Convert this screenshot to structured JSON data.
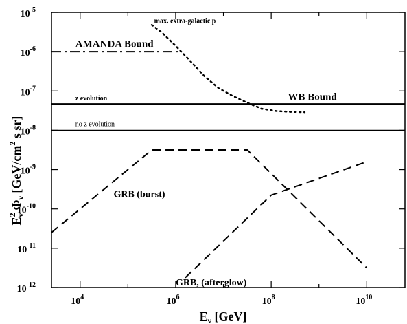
{
  "chart_data": {
    "type": "line",
    "title": "",
    "xlabel": {
      "base": "E",
      "sub": "ν",
      "unit": "[GeV]"
    },
    "ylabel": {
      "base": "E",
      "sup": "2",
      "sub_after_sup": "ν",
      "mid": "Φ",
      "mid_sub": "ν",
      "unit": "[GeV/cm",
      "unit_sup": "2",
      "unit_end": " s sr]"
    },
    "xscale": "log",
    "yscale": "log",
    "xlim_log10": [
      3.4,
      10.8
    ],
    "ylim_log10": [
      -12,
      -5
    ],
    "xticks": [
      {
        "value": 10000.0,
        "base": "10",
        "exp": "4"
      },
      {
        "value": 1000000.0,
        "base": "10",
        "exp": "6"
      },
      {
        "value": 100000000.0,
        "base": "10",
        "exp": "8"
      },
      {
        "value": 10000000000.0,
        "base": "10",
        "exp": "10"
      }
    ],
    "yticks": [
      {
        "value": 1e-05,
        "base": "10",
        "exp": "-5"
      },
      {
        "value": 1e-06,
        "base": "10",
        "exp": "-6"
      },
      {
        "value": 1e-07,
        "base": "10",
        "exp": "-7"
      },
      {
        "value": 1e-08,
        "base": "10",
        "exp": "-8"
      },
      {
        "value": 1e-09,
        "base": "10",
        "exp": "-9"
      },
      {
        "value": 1e-10,
        "base": "10",
        "exp": "-10"
      },
      {
        "value": 1e-11,
        "base": "10",
        "exp": "-11"
      },
      {
        "value": 1e-12,
        "base": "10",
        "exp": "-12"
      }
    ],
    "series": [
      {
        "key": "amanda",
        "label": "AMANDA Bound",
        "style": "dashdot",
        "width": 2,
        "x": [
          3.4,
          6.05
        ],
        "y": [
          -6,
          -6
        ]
      },
      {
        "key": "maxeg",
        "label": "max. extra-galactic p",
        "style": "dotted",
        "width": 2.5,
        "x": [
          5.5,
          5.7,
          6.0,
          6.3,
          6.6,
          6.9,
          7.2,
          7.5,
          7.8,
          8.1,
          8.4,
          8.7
        ],
        "y": [
          -5.32,
          -5.5,
          -5.85,
          -6.23,
          -6.62,
          -6.93,
          -7.13,
          -7.3,
          -7.45,
          -7.51,
          -7.53,
          -7.54
        ]
      },
      {
        "key": "wb_z",
        "label": "z evolution",
        "style": "solid",
        "width": 2,
        "x": [
          3.4,
          10.8
        ],
        "y": [
          -7.33,
          -7.33
        ]
      },
      {
        "key": "wb_noz",
        "label": "no z evolution",
        "style": "solid",
        "width": 1.3,
        "x": [
          3.4,
          10.8
        ],
        "y": [
          -8,
          -8
        ]
      },
      {
        "key": "grb_burst",
        "label": "GRB (burst)",
        "style": "dashed",
        "width": 2,
        "x": [
          3.4,
          5.5,
          7.5,
          10.0
        ],
        "y": [
          -10.6,
          -8.5,
          -8.5,
          -11.5
        ]
      },
      {
        "key": "grb_afterglow",
        "label": "GRB (afterglow)",
        "style": "dashed",
        "width": 2,
        "x": [
          6.2,
          8.0,
          10.0
        ],
        "y": [
          -11.75,
          -9.65,
          -8.8
        ]
      }
    ],
    "annotations": [
      {
        "text": "max. extra-galactic p",
        "x_log": 5.55,
        "y_log": -5.27,
        "size": 10,
        "weight": "bold"
      },
      {
        "text": "AMANDA Bound",
        "x_log": 3.9,
        "y_log": -5.88,
        "size": 15,
        "weight": "bold"
      },
      {
        "text": "z evolution",
        "x_log": 3.9,
        "y_log": -7.24,
        "size": 10,
        "weight": "bold"
      },
      {
        "text": "WB Bound",
        "x_log": 8.35,
        "y_log": -7.23,
        "size": 15,
        "weight": "bold"
      },
      {
        "text": "no z evolution",
        "x_log": 3.9,
        "y_log": -7.9,
        "size": 10,
        "weight": "normal"
      },
      {
        "text": "GRB (burst)",
        "x_log": 4.7,
        "y_log": -9.7,
        "size": 14,
        "weight": "bold"
      },
      {
        "text": "GRB, (afterglow)",
        "x_log": 6.0,
        "y_log": -11.95,
        "size": 14,
        "weight": "bold"
      }
    ],
    "grid": false,
    "legend": "none (inline labels)",
    "colors": {
      "line": "#000000",
      "background": "#ffffff"
    }
  }
}
